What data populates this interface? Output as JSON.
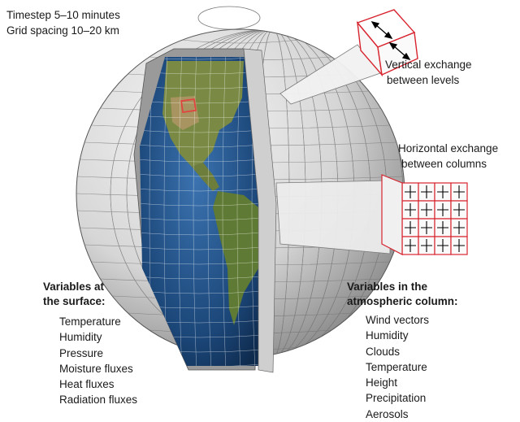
{
  "top_note": {
    "line1": "Timestep 5–10 minutes",
    "line2": "Grid spacing 10–20 km"
  },
  "vertical_label": {
    "line1": "Vertical exchange",
    "line2": "between levels"
  },
  "horizontal_label": {
    "line1": "Horizontal exchange",
    "line2": "between columns"
  },
  "surface": {
    "heading_line1": "Variables at",
    "heading_line2": "the surface:",
    "items": [
      "Temperature",
      "Humidity",
      "Pressure",
      "Moisture fluxes",
      "Heat fluxes",
      "Radiation fluxes"
    ]
  },
  "column": {
    "heading_line1": "Variables in the",
    "heading_line2": "atmospheric column:",
    "items": [
      "Wind vectors",
      "Humidity",
      "Clouds",
      "Temperature",
      "Height",
      "Precipitation",
      "Aerosols"
    ]
  },
  "colors": {
    "ocean": "#1f4f86",
    "land": "#6b7a3a",
    "grid_shell": "#d9d9d9",
    "highlight": "#d8242f"
  }
}
